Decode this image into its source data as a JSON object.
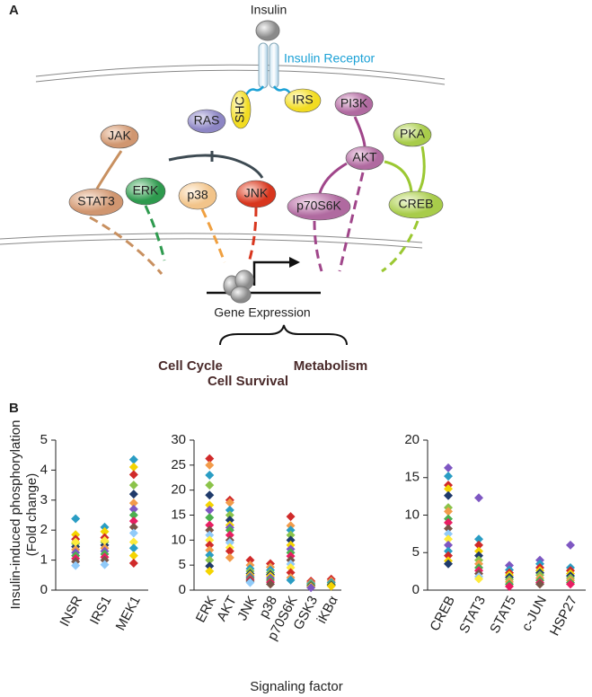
{
  "panels": [
    "A",
    "B"
  ],
  "diagram": {
    "nodes": [
      "Insulin",
      "SHC",
      "IRS",
      "RAS",
      "PI3K",
      "JAK",
      "PKA",
      "AKT",
      "ERK",
      "STAT3",
      "p38",
      "JNK",
      "p70S6K",
      "CREB"
    ],
    "receptor": "Insulin Receptor",
    "output": "Gene Expression",
    "outcomes": [
      "Cell Cycle",
      "Cell Survival",
      "Metabolism"
    ]
  },
  "shared_axes": {
    "y_label_lines": [
      "Insulin-induced phosphorylation",
      "(Fold change)"
    ],
    "x_label": "Signaling factor"
  },
  "chart_data": [
    {
      "type": "strip",
      "categories": [
        "INSR",
        "IRS1",
        "MEK1"
      ],
      "values": [
        [
          2.38,
          1.85,
          1.7,
          1.55,
          1.45,
          1.35,
          1.25,
          1.15,
          1.05,
          0.95,
          0.82,
          1.6
        ],
        [
          2.1,
          1.95,
          1.75,
          1.6,
          1.5,
          1.4,
          1.3,
          1.2,
          1.1,
          1.0,
          0.85,
          1.65
        ],
        [
          4.35,
          4.1,
          3.85,
          3.5,
          3.2,
          2.9,
          2.7,
          2.5,
          2.3,
          2.1,
          1.9,
          1.6,
          1.4,
          1.15,
          0.9
        ]
      ],
      "ylim": [
        0,
        5
      ],
      "yticks": [
        0,
        1,
        2,
        3,
        4,
        5
      ],
      "colors": [
        "#2a9dc4",
        "#f4d400",
        "#d02a2a",
        "#8bc34a",
        "#1f3a6b",
        "#f29b4a",
        "#7e57c2",
        "#4caf50",
        "#e91e63",
        "#795548",
        "#90caf9",
        "#ffeb3b"
      ]
    },
    {
      "type": "strip",
      "categories": [
        "ERK",
        "AKT",
        "JNK",
        "p38",
        "p70S6K",
        "GSK3",
        "iKBα"
      ],
      "values": [
        [
          26.3,
          25,
          23,
          21,
          19,
          17,
          16,
          14.5,
          13,
          12,
          11,
          10,
          9,
          8,
          7,
          6,
          4.8,
          3.8
        ],
        [
          18,
          17.5,
          16,
          15,
          14,
          13,
          12.5,
          12,
          11,
          10,
          9.5,
          8.5,
          7.8,
          6.5
        ],
        [
          6,
          5,
          4.3,
          3.8,
          3.3,
          3,
          2.7,
          2.4,
          2.1,
          1.8,
          1.5
        ],
        [
          5.3,
          4.6,
          4,
          3.5,
          3.1,
          2.8,
          2.4,
          2,
          1.6,
          1.2
        ],
        [
          14.7,
          12.9,
          12,
          11,
          10,
          9,
          8.2,
          7.5,
          6.8,
          6,
          5.2,
          4.5,
          3.5,
          2.5,
          2
        ],
        [
          1.8,
          1.5,
          1.3,
          1.1,
          0.9,
          0.7,
          0.5
        ],
        [
          2.2,
          1.8,
          1.5,
          1.2,
          1,
          0.8
        ]
      ],
      "ylim": [
        0,
        30
      ],
      "yticks": [
        0,
        5,
        10,
        15,
        20,
        25,
        30
      ],
      "colors": [
        "#d02a2a",
        "#f29b4a",
        "#2a9dc4",
        "#8bc34a",
        "#1f3a6b",
        "#f4d400",
        "#7e57c2",
        "#4caf50",
        "#e91e63",
        "#795548",
        "#90caf9",
        "#ffeb3b"
      ]
    },
    {
      "type": "strip",
      "categories": [
        "CREB",
        "STAT3",
        "STAT5",
        "c-JUN",
        "HSP27"
      ],
      "values": [
        [
          16.3,
          15.2,
          14,
          13.5,
          12.6,
          11,
          10.5,
          9.5,
          9,
          8.2,
          7.5,
          6.8,
          6,
          5.2,
          4.6,
          3.9,
          3.5
        ],
        [
          12.3,
          6.8,
          6,
          5.2,
          4.6,
          4,
          3.5,
          3,
          2.6,
          2.2,
          1.8,
          1.5
        ],
        [
          3.3,
          2.7,
          2.3,
          2,
          1.7,
          1.4,
          1.1,
          0.8,
          0.5
        ],
        [
          4,
          3.5,
          3,
          2.6,
          2.3,
          2,
          1.6,
          1.3,
          1,
          0.8
        ],
        [
          6,
          3,
          2.6,
          2.2,
          1.9,
          1.6,
          1.3,
          1,
          0.8
        ]
      ],
      "ylim": [
        0,
        20
      ],
      "yticks": [
        0,
        5,
        10,
        15,
        20
      ],
      "colors": [
        "#7e57c2",
        "#2a9dc4",
        "#d02a2a",
        "#f4d400",
        "#1f3a6b",
        "#8bc34a",
        "#f29b4a",
        "#4caf50",
        "#e91e63",
        "#795548",
        "#90caf9",
        "#ffeb3b"
      ]
    }
  ]
}
